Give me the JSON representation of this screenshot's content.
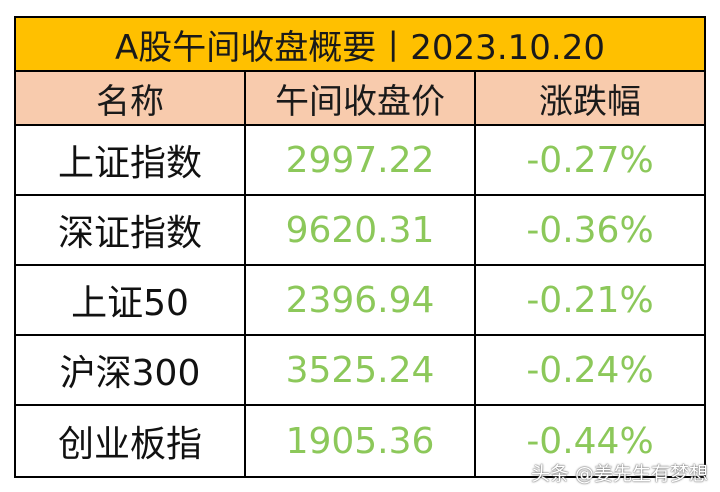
{
  "table": {
    "title": "A股午间收盘概要丨2023.10.20",
    "headers": [
      "名称",
      "午间收盘价",
      "涨跌幅"
    ],
    "rows": [
      {
        "name": "上证指数",
        "price": "2997.22",
        "change": "-0.27%"
      },
      {
        "name": "深证指数",
        "price": "9620.31",
        "change": "-0.36%"
      },
      {
        "name": "上证50",
        "price": "2396.94",
        "change": "-0.21%"
      },
      {
        "name": "沪深300",
        "price": "3525.24",
        "change": "-0.24%"
      },
      {
        "name": "创业板指",
        "price": "1905.36",
        "change": "-0.44%"
      }
    ]
  },
  "watermark": {
    "text": "头条 @姜先生有梦想"
  },
  "colors": {
    "title_bg": "#ffc000",
    "header_bg": "#f8cbad",
    "value_green": "#8cc85a",
    "border": "#000000"
  }
}
